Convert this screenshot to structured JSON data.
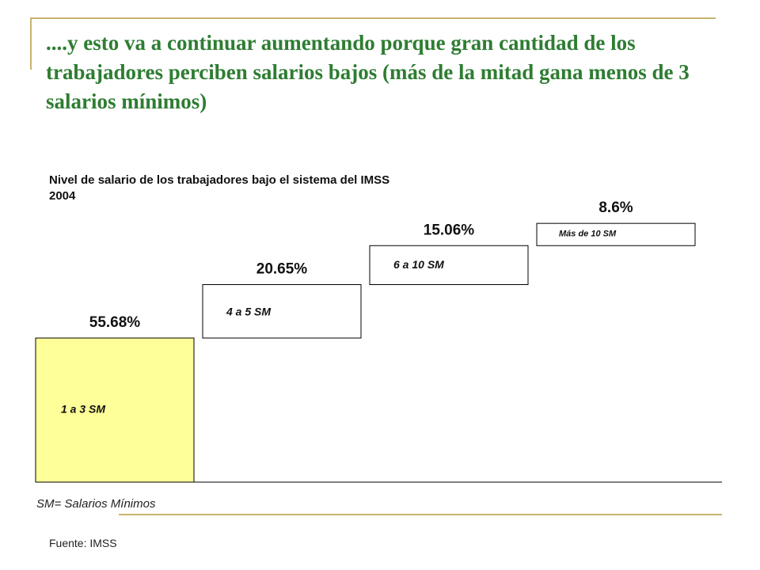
{
  "slide": {
    "title": "....y esto va a continuar aumentando porque gran cantidad de los trabajadores perciben salarios bajos (más de  la mitad gana menos de 3 salarios mínimos)",
    "footnote": "SM= Salarios Mínimos",
    "source": "Fuente: IMSS"
  },
  "chart_data": {
    "type": "bar",
    "title": "Nivel de salario de los trabajadores bajo el sistema del IMSS",
    "subtitle": "2004",
    "categories": [
      "1 a 3 SM",
      "4 a 5  SM",
      "6 a 10 SM",
      "Más de  10 SM"
    ],
    "values": [
      55.68,
      20.65,
      15.06,
      8.6
    ],
    "value_labels": [
      "55.68%",
      "20.65%",
      "15.06%",
      "8.6%"
    ],
    "colors": [
      "#ffff99",
      "#ffffff",
      "#ffffff",
      "#ffffff"
    ],
    "stroke_color": "#000000",
    "grid": false,
    "legend": "none"
  }
}
